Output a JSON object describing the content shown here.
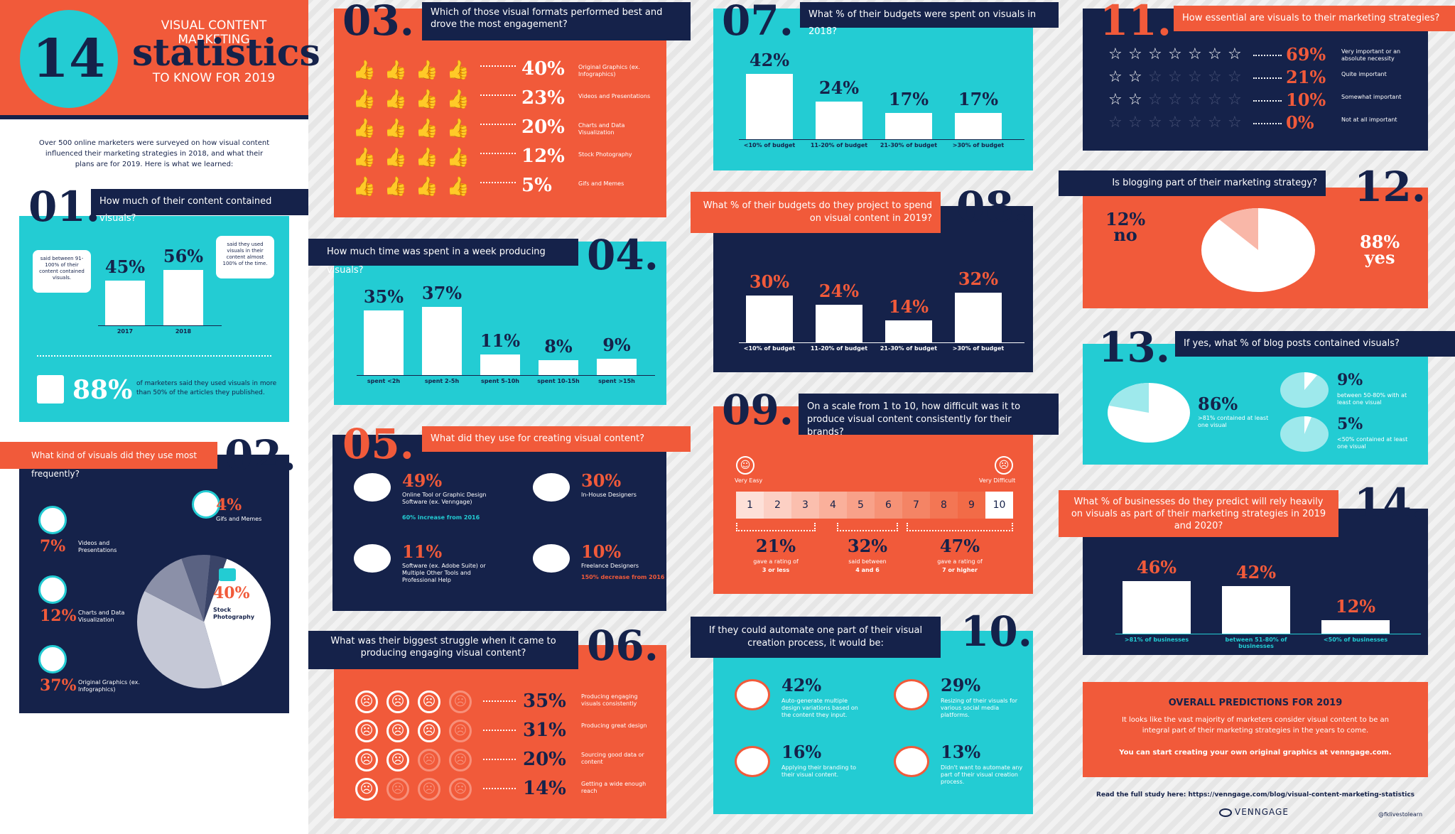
{
  "header": {
    "number": "14",
    "line1": "VISUAL CONTENT MARKETING",
    "line2": "statistics",
    "line3": "TO KNOW FOR 2019"
  },
  "intro": {
    "text": "Over 500 online marketers were surveyed on how visual content influenced their marketing strategies in 2018, and what their plans are for 2019. Here is what we learned:"
  },
  "s01": {
    "num": "01.",
    "question": "How much of their content contained visuals?",
    "left_note": "said between 91-100% of their content contained visuals.",
    "right_note": "said they used visuals in their content almost 100% of the time.",
    "bars": [
      {
        "pct": "45%",
        "year": "2017",
        "value": 45
      },
      {
        "pct": "56%",
        "year": "2018",
        "value": 56
      }
    ],
    "big": "88%",
    "big_text": "of marketers said they used visuals in more than 50% of the articles they published."
  },
  "s02": {
    "num": "02.",
    "question": "What kind of visuals did they use most frequently?",
    "items": [
      {
        "pct": "7%",
        "label": "Videos and Presentations",
        "value": 7
      },
      {
        "pct": "12%",
        "label": "Charts and Data Visualization",
        "value": 12
      },
      {
        "pct": "37%",
        "label": "Original Graphics (ex. Infographics)",
        "value": 37
      },
      {
        "pct": "4%",
        "label": "Gifs and Memes",
        "value": 4
      },
      {
        "pct": "40%",
        "label": "Stock Photography",
        "value": 40
      }
    ]
  },
  "s03": {
    "num": "03.",
    "question": "Which of those visual formats performed best and drove the most engagement?",
    "rows": [
      {
        "pct": "40%",
        "label": "Original Graphics (ex. Infographics)",
        "filled": 4
      },
      {
        "pct": "23%",
        "label": "Videos and Presentations",
        "filled": 3
      },
      {
        "pct": "20%",
        "label": "Charts and Data Visualization",
        "filled": 2
      },
      {
        "pct": "12%",
        "label": "Stock Photography",
        "filled": 1
      },
      {
        "pct": "5%",
        "label": "Gifs and Memes",
        "filled": 1
      }
    ]
  },
  "s04": {
    "num": "04.",
    "question": "How much time was spent in a week producing visuals?",
    "bars": [
      {
        "pct": "35%",
        "label": "spent <2h",
        "value": 35
      },
      {
        "pct": "37%",
        "label": "spent 2-5h",
        "value": 37
      },
      {
        "pct": "11%",
        "label": "spent 5-10h",
        "value": 11
      },
      {
        "pct": "8%",
        "label": "spent 10-15h",
        "value": 8
      },
      {
        "pct": "9%",
        "label": "spent >15h",
        "value": 9
      }
    ]
  },
  "s05": {
    "num": "05.",
    "question": "What did they use for creating visual content?",
    "items": [
      {
        "pct": "49%",
        "label": "Online Tool or Graphic Design Software (ex. Venngage)",
        "note": "60% increase from 2016"
      },
      {
        "pct": "30%",
        "label": "In-House Designers",
        "note": ""
      },
      {
        "pct": "11%",
        "label": "Software (ex. Adobe Suite) or Multiple Other Tools and Professional Help",
        "note": ""
      },
      {
        "pct": "10%",
        "label": "Freelance Designers",
        "note": "150% decrease from 2016"
      }
    ]
  },
  "s06": {
    "num": "06.",
    "question": "What was their biggest struggle when it came to producing engaging visual content?",
    "rows": [
      {
        "pct": "35%",
        "label": "Producing engaging visuals consistently",
        "filled": 3
      },
      {
        "pct": "31%",
        "label": "Producing great design",
        "filled": 3
      },
      {
        "pct": "20%",
        "label": "Sourcing good data or content",
        "filled": 2
      },
      {
        "pct": "14%",
        "label": "Getting a wide enough reach",
        "filled": 1
      }
    ]
  },
  "s07": {
    "num": "07.",
    "question": "What % of their budgets were spent on visuals in 2018?",
    "bars": [
      {
        "pct": "42%",
        "label": "<10% of budget",
        "value": 42
      },
      {
        "pct": "24%",
        "label": "11-20% of budget",
        "value": 24
      },
      {
        "pct": "17%",
        "label": "21-30% of budget",
        "value": 17
      },
      {
        "pct": "17%",
        "label": ">30% of budget",
        "value": 17
      }
    ]
  },
  "s08": {
    "num": "08.",
    "question": "What % of their budgets do they project to spend on visual content in 2019?",
    "bars": [
      {
        "pct": "30%",
        "label": "<10% of budget",
        "value": 30
      },
      {
        "pct": "24%",
        "label": "11-20% of budget",
        "value": 24
      },
      {
        "pct": "14%",
        "label": "21-30% of budget",
        "value": 14
      },
      {
        "pct": "32%",
        "label": ">30% of budget",
        "value": 32
      }
    ]
  },
  "s09": {
    "num": "09.",
    "question": "On a scale from 1 to 10, how difficult was it to produce visual content consistently for their brands?",
    "easy": "Very Easy",
    "hard": "Very Difficult",
    "scale": [
      "1",
      "2",
      "3",
      "4",
      "5",
      "6",
      "7",
      "8",
      "9",
      "10"
    ],
    "groups": [
      {
        "pct": "21%",
        "label": "gave a rating of",
        "strong": "3 or less"
      },
      {
        "pct": "32%",
        "label": "said between",
        "strong": "4 and 6"
      },
      {
        "pct": "47%",
        "label": "gave a rating of",
        "strong": "7 or higher"
      }
    ]
  },
  "s10": {
    "num": "10.",
    "question": "If they could automate one part of their visual creation process, it would be:",
    "items": [
      {
        "pct": "42%",
        "label": "Auto-generate multiple design variations based on the content they input."
      },
      {
        "pct": "29%",
        "label": "Resizing of their visuals for various social media platforms."
      },
      {
        "pct": "16%",
        "label": "Applying their branding to their visual content."
      },
      {
        "pct": "13%",
        "label": "Didn't want to automate any part of their visual creation process."
      }
    ]
  },
  "s11": {
    "num": "11.",
    "question": "How essential are visuals to their marketing strategies?",
    "rows": [
      {
        "pct": "69%",
        "label": "Very important or an absolute necessity",
        "stars": 7
      },
      {
        "pct": "21%",
        "label": "Quite important",
        "stars": 2
      },
      {
        "pct": "10%",
        "label": "Somewhat important",
        "stars": 2
      },
      {
        "pct": "0%",
        "label": "Not at all important",
        "stars": 0
      }
    ]
  },
  "s12": {
    "num": "12.",
    "question": "Is blogging part of their marketing strategy?",
    "no_pct": "12%",
    "no": "no",
    "yes_pct": "88%",
    "yes": "yes",
    "value_yes": 88
  },
  "s13": {
    "num": "13.",
    "question": "If yes, what % of blog posts contained visuals?",
    "main_pct": "86%",
    "main_label": ">81% contained at least one visual",
    "a_pct": "9%",
    "a_label": "between 50-80% with at least one visual",
    "b_pct": "5%",
    "b_label": "<50% contained at least one visual"
  },
  "s14": {
    "num": "14.",
    "question": "What % of businesses do they predict will rely heavily on visuals as part of their marketing strategies in 2019 and 2020?",
    "bars": [
      {
        "pct": "46%",
        "label": ">81% of businesses",
        "value": 46
      },
      {
        "pct": "42%",
        "label": "between 51-80% of businesses",
        "value": 42
      },
      {
        "pct": "12%",
        "label": "<50% of businesses",
        "value": 12
      }
    ]
  },
  "pred": {
    "title": "OVERALL PREDICTIONS FOR 2019",
    "text": "It looks like the vast majority of marketers consider visual content to be an integral part of their marketing strategies in the years to come.",
    "cta": "You can start creating your own original graphics at venngage.com."
  },
  "footer": {
    "study": "Read the full study here: https://venngage.com/blog/visual-content-marketing-statistics",
    "brand": "VENNGAGE",
    "handle": "@fklivestolearn"
  },
  "colors": {
    "navy": "#15224a",
    "orange": "#f15a3a",
    "teal": "#23ccd3"
  }
}
